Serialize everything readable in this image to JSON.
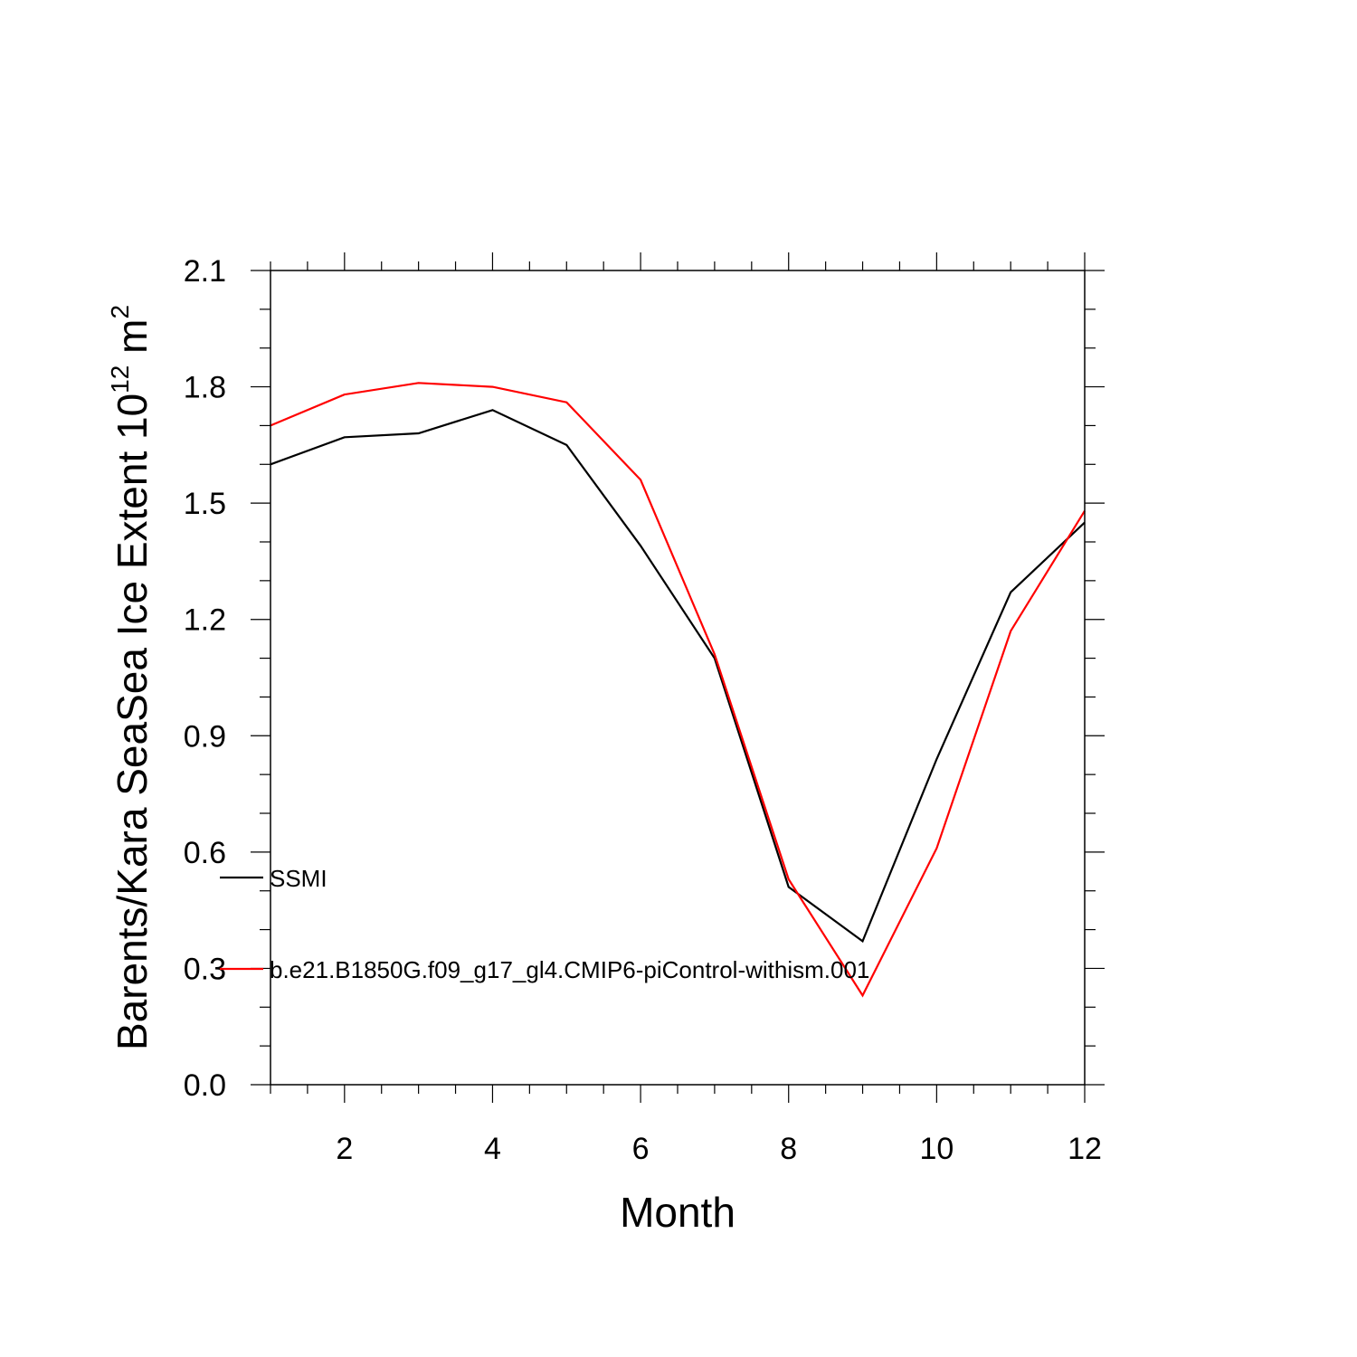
{
  "chart_data": {
    "type": "line",
    "title": "",
    "xlabel": "Month",
    "ylabel": "Barents/Kara SeaSea Ice Extent 10",
    "ylabel_superscript": "12",
    "ylabel_unit": " m",
    "ylabel_unit_superscript": "2",
    "xlim": [
      1,
      12
    ],
    "ylim": [
      0.0,
      2.1
    ],
    "x": [
      1,
      2,
      3,
      4,
      5,
      6,
      7,
      8,
      9,
      10,
      11,
      12
    ],
    "x_ticks": [
      "2",
      "4",
      "6",
      "8",
      "10",
      "12"
    ],
    "y_ticks": [
      "0.0",
      "0.3",
      "0.6",
      "0.9",
      "1.2",
      "1.5",
      "1.8",
      "2.1"
    ],
    "grid": false,
    "legend_position": "inside-left",
    "series": [
      {
        "name": "SSMI",
        "color": "#000000",
        "values": [
          1.6,
          1.67,
          1.68,
          1.74,
          1.65,
          1.39,
          1.1,
          0.51,
          0.37,
          0.84,
          1.27,
          1.45
        ]
      },
      {
        "name": "b.e21.B1850G.f09_g17_gl4.CMIP6-piControl-withism.001",
        "color": "#ff0000",
        "values": [
          1.7,
          1.78,
          1.81,
          1.8,
          1.76,
          1.56,
          1.11,
          0.53,
          0.23,
          0.61,
          1.17,
          1.48
        ]
      }
    ]
  }
}
